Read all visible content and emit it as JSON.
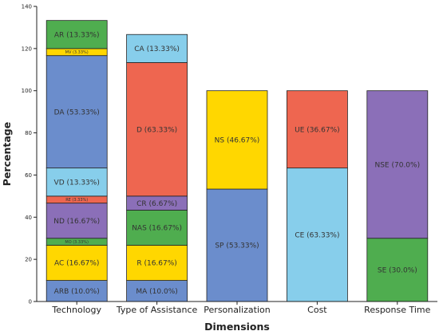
{
  "chart_data": {
    "type": "bar",
    "stacked": true,
    "xlabel": "Dimensions",
    "ylabel": "Percentage",
    "ylim": [
      0,
      140
    ],
    "yticks": [
      0,
      20,
      40,
      60,
      80,
      100,
      120,
      140
    ],
    "grid": false,
    "legend": "none",
    "categories": [
      "Technology",
      "Type of Assistance",
      "Personalization",
      "Cost",
      "Response Time"
    ],
    "stacks": [
      {
        "category": "Technology",
        "segments": [
          {
            "label": "ARB (10.0%)",
            "value": 10.0,
            "color": "#6b8dcc"
          },
          {
            "label": "AC (16.67%)",
            "value": 16.67,
            "color": "#ffd700"
          },
          {
            "label": "MO (3.33%)",
            "value": 3.33,
            "color": "#4fad4f"
          },
          {
            "label": "ND (16.67%)",
            "value": 16.67,
            "color": "#8b6fb8"
          },
          {
            "label": "RE (3.33%)",
            "value": 3.33,
            "color": "#ee6650"
          },
          {
            "label": "VD (13.33%)",
            "value": 13.33,
            "color": "#87ceeb"
          },
          {
            "label": "DA (53.33%)",
            "value": 53.33,
            "color": "#6b8dcc"
          },
          {
            "label": "MV (3.33%)",
            "value": 3.33,
            "color": "#ffd700"
          },
          {
            "label": "AR (13.33%)",
            "value": 13.33,
            "color": "#4fad4f"
          }
        ]
      },
      {
        "category": "Type of Assistance",
        "segments": [
          {
            "label": "MA (10.0%)",
            "value": 10.0,
            "color": "#6b8dcc"
          },
          {
            "label": "R (16.67%)",
            "value": 16.67,
            "color": "#ffd700"
          },
          {
            "label": "NAS (16.67%)",
            "value": 16.67,
            "color": "#4fad4f"
          },
          {
            "label": "CR (6.67%)",
            "value": 6.67,
            "color": "#8b6fb8"
          },
          {
            "label": "D (63.33%)",
            "value": 63.33,
            "color": "#ee6650"
          },
          {
            "label": "CA (13.33%)",
            "value": 13.33,
            "color": "#87ceeb"
          }
        ]
      },
      {
        "category": "Personalization",
        "segments": [
          {
            "label": "SP (53.33%)",
            "value": 53.33,
            "color": "#6b8dcc"
          },
          {
            "label": "NS (46.67%)",
            "value": 46.67,
            "color": "#ffd700"
          }
        ]
      },
      {
        "category": "Cost",
        "segments": [
          {
            "label": "CE (63.33%)",
            "value": 63.33,
            "color": "#87ceeb"
          },
          {
            "label": "UE (36.67%)",
            "value": 36.67,
            "color": "#ee6650"
          }
        ]
      },
      {
        "category": "Response Time",
        "segments": [
          {
            "label": "SE (30.0%)",
            "value": 30.0,
            "color": "#4fad4f"
          },
          {
            "label": "NSE (70.0%)",
            "value": 70.0,
            "color": "#8b6fb8"
          }
        ]
      }
    ]
  }
}
